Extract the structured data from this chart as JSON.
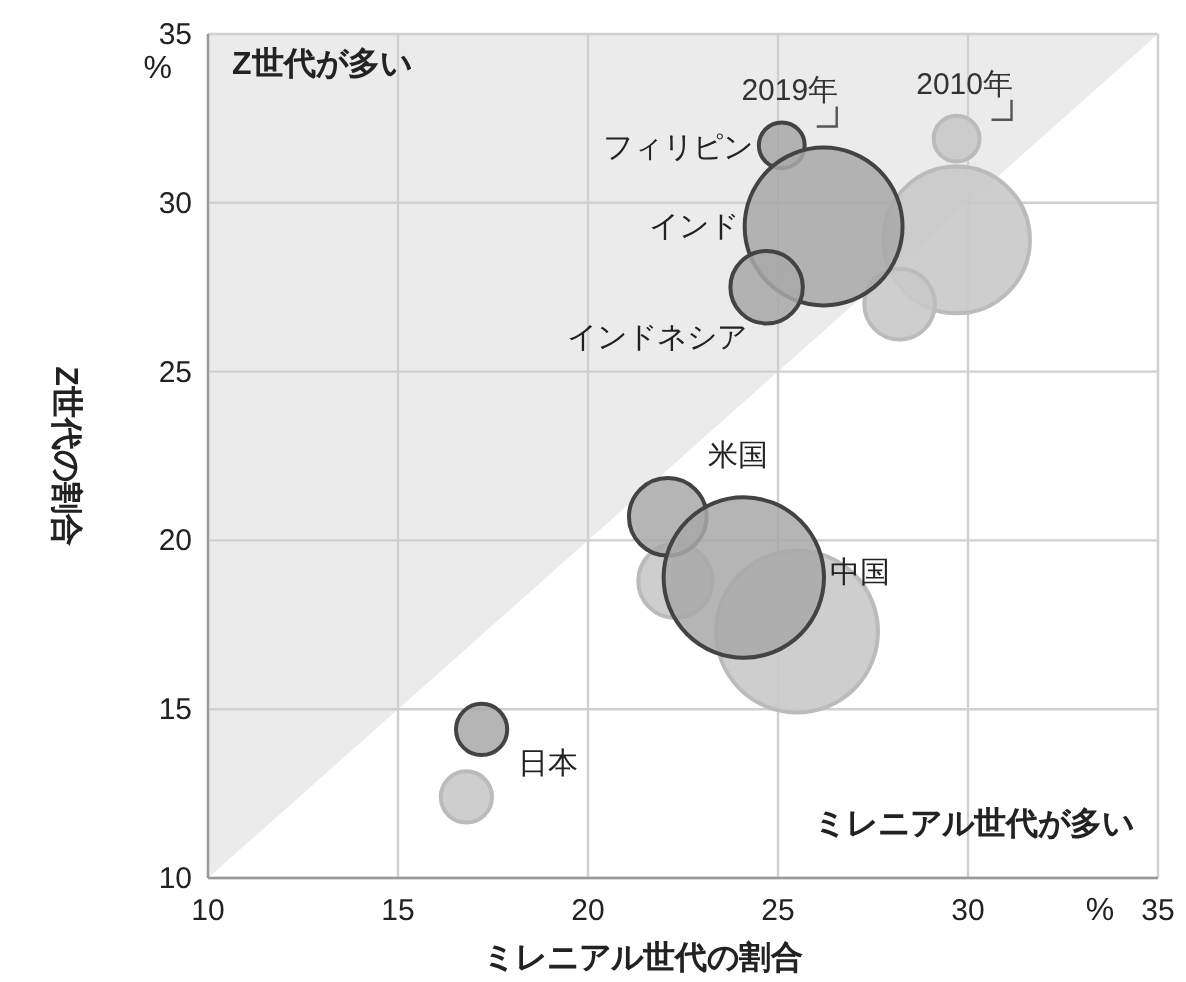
{
  "chart_data": {
    "type": "bubble",
    "xlabel": "ミレニアル世代の割合",
    "ylabel": "Z世代の割合",
    "xlim": [
      10,
      35
    ],
    "ylim": [
      10,
      35
    ],
    "xticks": [
      10,
      15,
      20,
      25,
      30,
      35
    ],
    "yticks": [
      10,
      15,
      20,
      25,
      30,
      35
    ],
    "grid": true,
    "series": [
      {
        "name": "2019年",
        "color": "#a8a8a8",
        "x": [
          25.1,
          26.2,
          24.7,
          22.1,
          24.1,
          17.2
        ],
        "values": [
          31.7,
          29.3,
          27.5,
          20.7,
          18.9,
          14.4
        ],
        "sizes": [
          0.08,
          0.95,
          0.2,
          0.23,
          0.98,
          0.1
        ]
      },
      {
        "name": "2010年",
        "color": "#c9c9c9",
        "x": [
          29.7,
          29.7,
          28.2,
          22.3,
          25.5,
          16.8
        ],
        "values": [
          31.9,
          28.9,
          27.0,
          18.8,
          17.3,
          12.4
        ],
        "sizes": [
          0.08,
          0.82,
          0.19,
          0.21,
          1,
          0.1
        ]
      }
    ],
    "annotations": [
      "Z世代が多い",
      "ミレニアル世代が多い",
      "%",
      "%",
      {
        "text": "フィリピン",
        "x": 25.1,
        "y": 31.7
      },
      {
        "text": "インド",
        "x": 26.2,
        "y": 29.3
      },
      {
        "text": "インドネシア",
        "x": 24.7,
        "y": 27.5
      },
      {
        "text": "米国",
        "x": 22.1,
        "y": 20.7
      },
      {
        "text": "中国",
        "x": 24.1,
        "y": 18.9
      },
      {
        "text": "日本",
        "x": 17.2,
        "y": 14.4
      }
    ]
  }
}
